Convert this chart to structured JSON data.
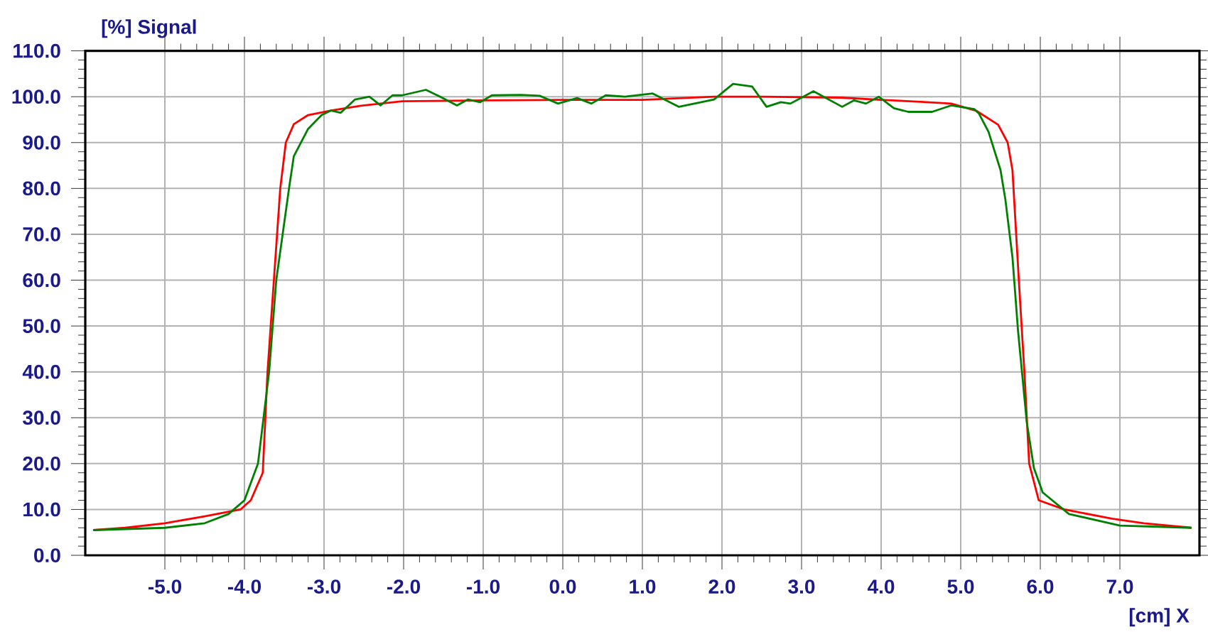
{
  "chart_data": {
    "type": "line",
    "xlabel": "[cm] X",
    "ylabel": "[%] Signal",
    "xlim": [
      -6,
      8
    ],
    "ylim": [
      0,
      110
    ],
    "grid": true,
    "xticks": [
      {
        "value": -5,
        "label": "-5.0"
      },
      {
        "value": -4,
        "label": "-4.0"
      },
      {
        "value": -3,
        "label": "-3.0"
      },
      {
        "value": -2,
        "label": "-2.0"
      },
      {
        "value": -1,
        "label": "-1.0"
      },
      {
        "value": 0,
        "label": "0.0"
      },
      {
        "value": 1,
        "label": "1.0"
      },
      {
        "value": 2,
        "label": "2.0"
      },
      {
        "value": 3,
        "label": "3.0"
      },
      {
        "value": 4,
        "label": "4.0"
      },
      {
        "value": 5,
        "label": "5.0"
      },
      {
        "value": 6,
        "label": "6.0"
      },
      {
        "value": 7,
        "label": "7.0"
      }
    ],
    "yticks": [
      {
        "value": 0,
        "label": "0.0"
      },
      {
        "value": 10,
        "label": "10.0"
      },
      {
        "value": 20,
        "label": "20.0"
      },
      {
        "value": 30,
        "label": "30.0"
      },
      {
        "value": 40,
        "label": "40.0"
      },
      {
        "value": 50,
        "label": "50.0"
      },
      {
        "value": 60,
        "label": "60.0"
      },
      {
        "value": 70,
        "label": "70.0"
      },
      {
        "value": 80,
        "label": "80.0"
      },
      {
        "value": 90,
        "label": "90.0"
      },
      {
        "value": 100,
        "label": "100.0"
      },
      {
        "value": 110,
        "label": "110.0"
      }
    ],
    "series": [
      {
        "color": "#ff0000",
        "x": [
          -5.9,
          -5.5,
          -5.0,
          -4.5,
          -4.2,
          -4.05,
          -3.92,
          -3.77,
          -3.71,
          -3.63,
          -3.55,
          -3.48,
          -3.38,
          -3.2,
          -2.91,
          -2.55,
          -2.02,
          -1.0,
          0.0,
          1.0,
          1.9,
          2.5,
          3.5,
          4.0,
          4.5,
          4.88,
          5.2,
          5.47,
          5.59,
          5.65,
          5.73,
          5.8,
          5.86,
          5.98,
          6.3,
          6.9,
          7.3,
          7.9
        ],
        "values": [
          5.5,
          6,
          7,
          8.5,
          9.5,
          10,
          12,
          18,
          40,
          60,
          80,
          90,
          94,
          96,
          97,
          98,
          99,
          99.2,
          99.3,
          99.3,
          100,
          100,
          99.8,
          99.3,
          98.9,
          98.5,
          96.9,
          93.9,
          90,
          84,
          60,
          40,
          20,
          12,
          10,
          8,
          7,
          6
        ]
      },
      {
        "color": "#008000",
        "x": [
          -5.9,
          -5.0,
          -4.5,
          -4.2,
          -4.0,
          -3.83,
          -3.69,
          -3.6,
          -3.44,
          -3.38,
          -3.2,
          -3.03,
          -2.91,
          -2.79,
          -2.61,
          -2.43,
          -2.29,
          -2.14,
          -2.02,
          -1.72,
          -1.54,
          -1.33,
          -1.19,
          -1.04,
          -0.89,
          -0.53,
          -0.29,
          -0.06,
          0.18,
          0.36,
          0.54,
          0.78,
          1.13,
          1.46,
          1.9,
          2.14,
          2.38,
          2.56,
          2.74,
          2.86,
          3.15,
          3.51,
          3.66,
          3.81,
          3.97,
          4.16,
          4.34,
          4.64,
          4.88,
          5.17,
          5.23,
          5.35,
          5.5,
          5.56,
          5.65,
          5.72,
          5.83,
          5.92,
          6.03,
          6.36,
          7.0,
          7.9
        ],
        "values": [
          5.5,
          6,
          7,
          9,
          12,
          20,
          40,
          60,
          80,
          87,
          93,
          96,
          97,
          96.5,
          99.4,
          100,
          98.1,
          100.3,
          100.3,
          101.5,
          100,
          98.1,
          99.4,
          98.8,
          100.3,
          100.4,
          100.2,
          98.5,
          99.7,
          98.5,
          100.3,
          100,
          100.7,
          97.8,
          99.4,
          102.8,
          102.2,
          97.8,
          98.8,
          98.5,
          101.2,
          97.8,
          99.2,
          98.5,
          100,
          97.5,
          96.7,
          96.7,
          98.1,
          97.3,
          96.3,
          92.3,
          84,
          77.7,
          65,
          49,
          29,
          19,
          13.7,
          9,
          6.5,
          6
        ]
      }
    ]
  }
}
